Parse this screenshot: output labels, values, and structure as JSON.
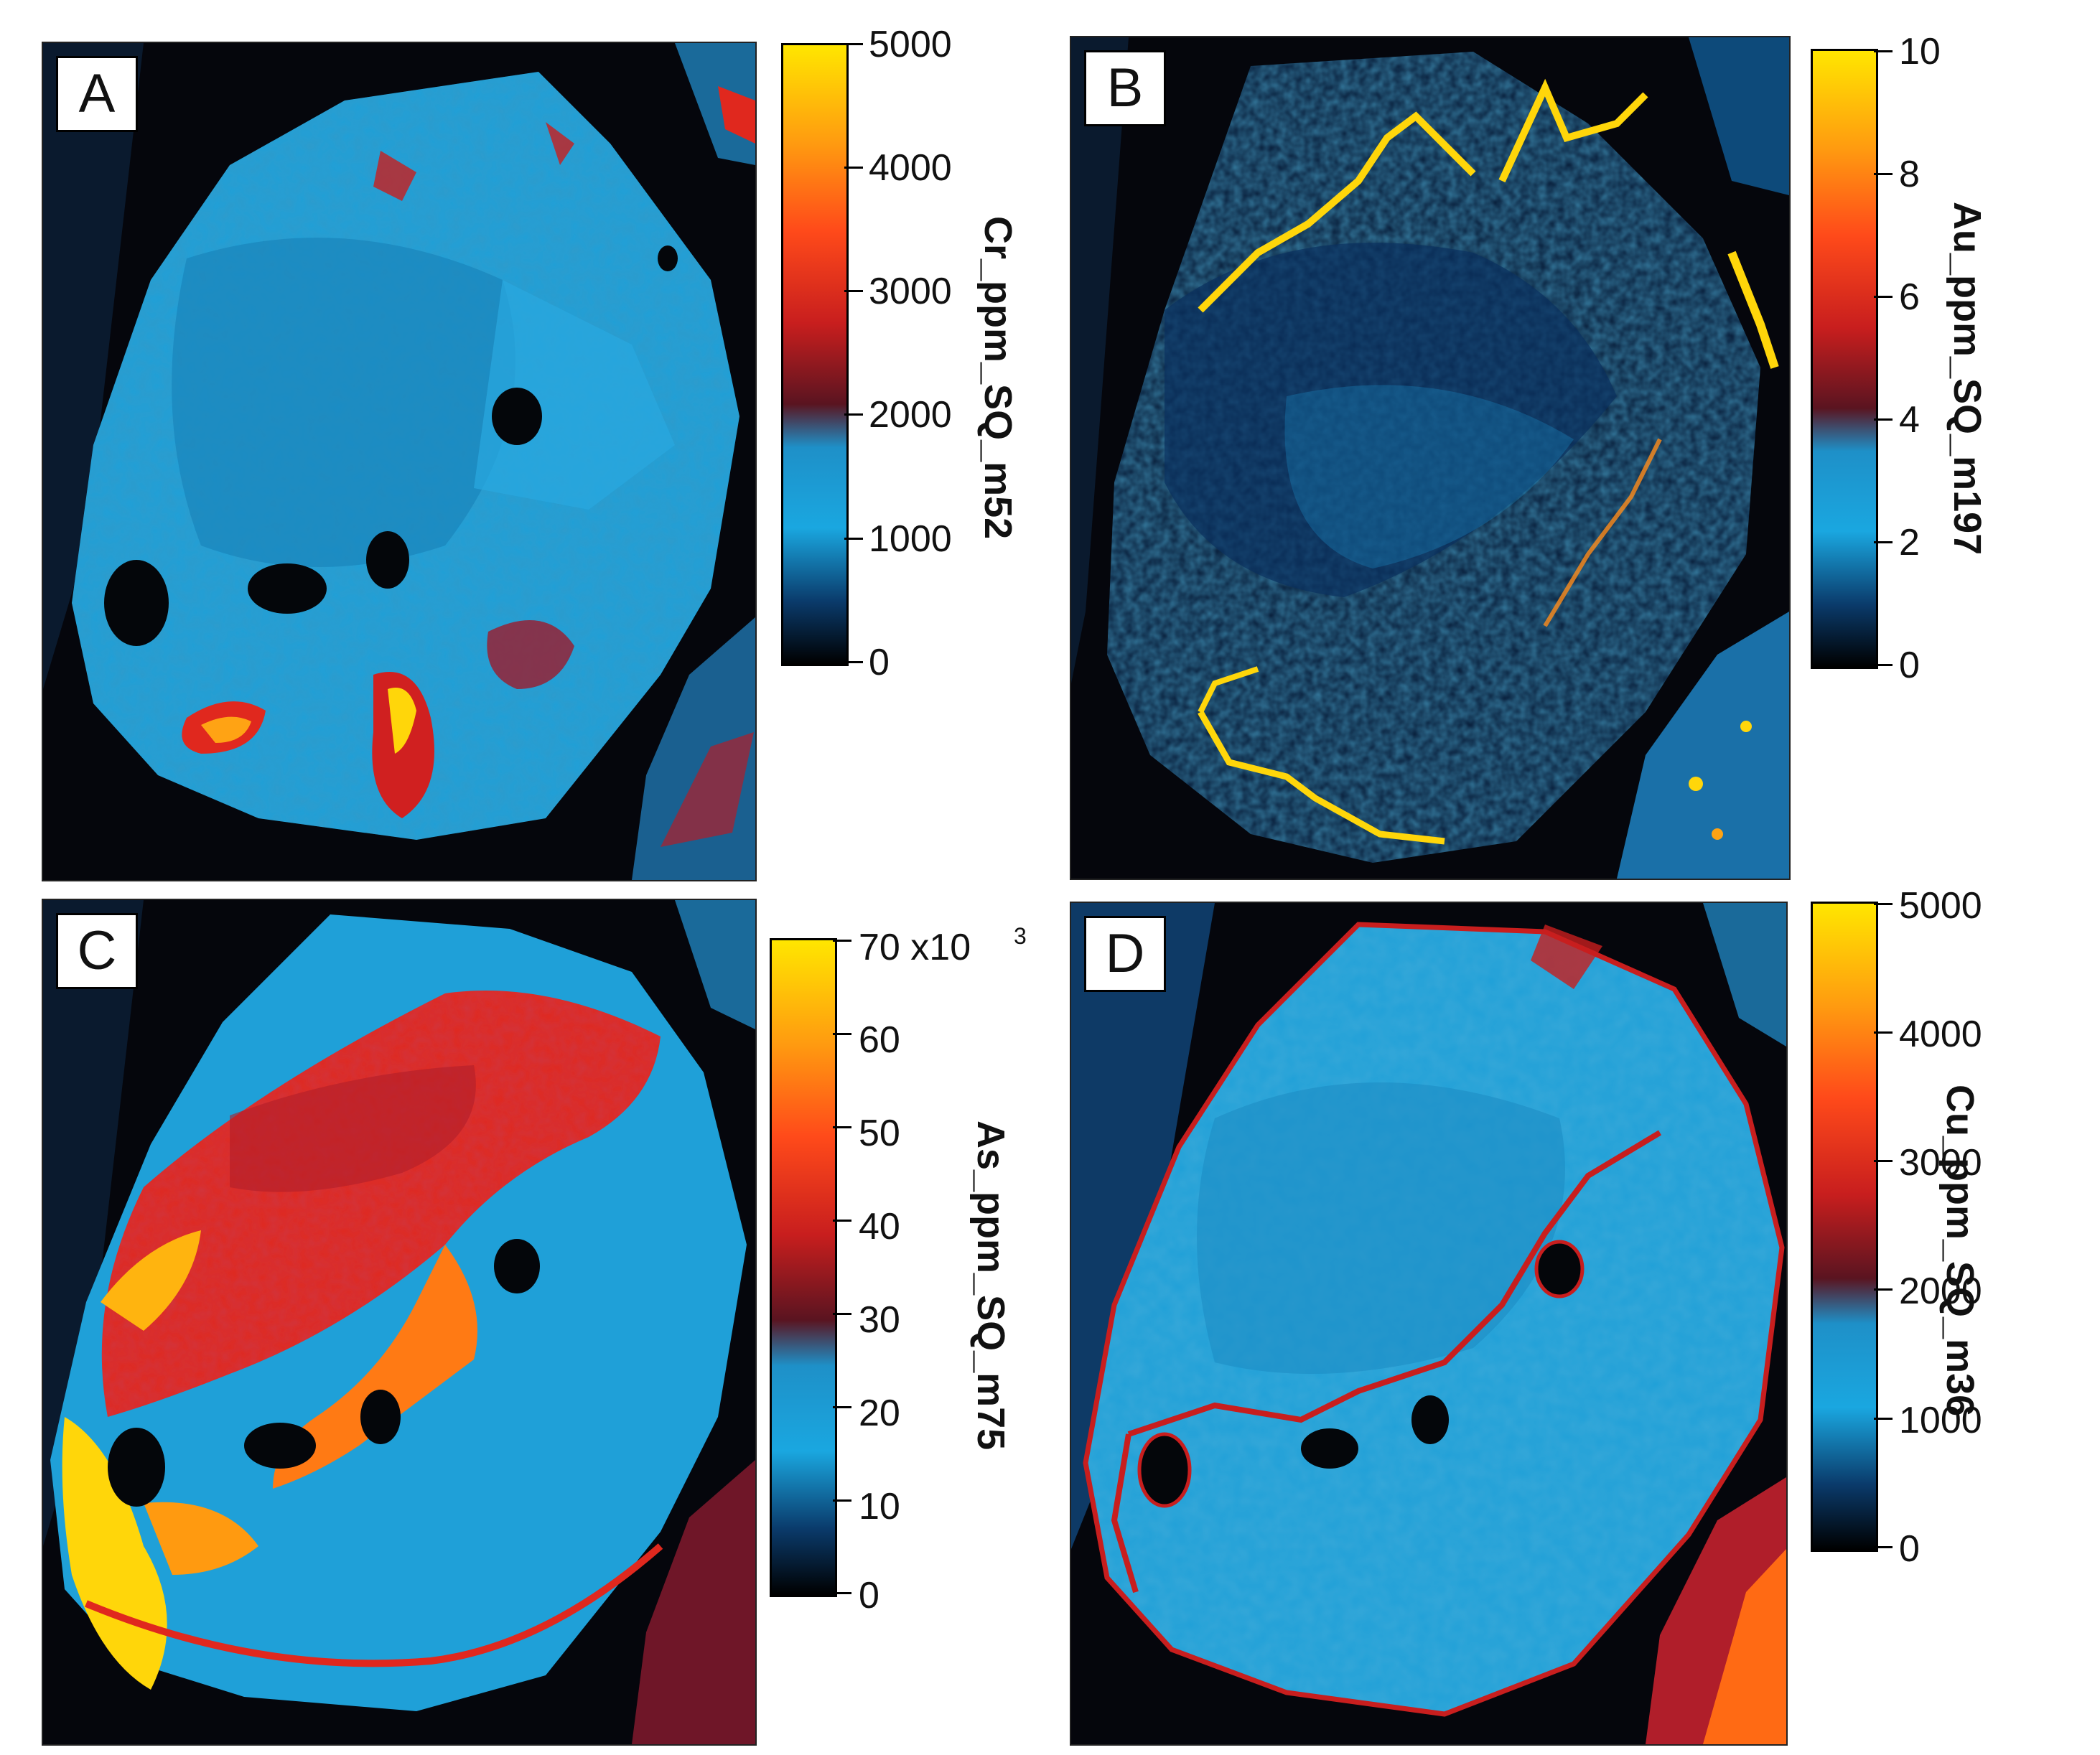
{
  "chart_data": [
    {
      "type": "heatmap",
      "panel": "A",
      "colorbar_label": "Cr_ppm_SQ_m52",
      "colorbar_range": [
        0,
        5000
      ],
      "ticks": [
        "5000",
        "4000",
        "3000",
        "2000",
        "1000",
        "0"
      ],
      "exponent": ""
    },
    {
      "type": "heatmap",
      "panel": "B",
      "colorbar_label": "Au_ppm_SQ_m197",
      "colorbar_range": [
        0,
        10
      ],
      "ticks": [
        "10",
        "8",
        "6",
        "4",
        "2",
        "0"
      ],
      "exponent": ""
    },
    {
      "type": "heatmap",
      "panel": "C",
      "colorbar_label": "As_ppm_SQ_m75",
      "colorbar_range": [
        0,
        70000
      ],
      "ticks": [
        "70",
        "60",
        "50",
        "40",
        "30",
        "20",
        "10",
        "0"
      ],
      "exponent": "x10",
      "exponent_power": "3"
    },
    {
      "type": "heatmap",
      "panel": "D",
      "colorbar_label": "Cu_ppm_SQ_m36",
      "colorbar_range": [
        0,
        5000
      ],
      "ticks": [
        "5000",
        "4000",
        "3000",
        "2000",
        "1000",
        "0"
      ],
      "exponent": ""
    }
  ],
  "colormap": [
    "#000000",
    "#0a3a6a",
    "#1aa7e0",
    "#1e90c8",
    "#5a1420",
    "#c81e1e",
    "#ff4a1a",
    "#ff9a10",
    "#ffe600"
  ],
  "colors": {
    "background": "#05060c",
    "grain_base": "#1fa0d8",
    "grain_dark": "#0b2a4a",
    "hot_red": "#e0281e",
    "hot_yellow": "#ffd60a"
  }
}
